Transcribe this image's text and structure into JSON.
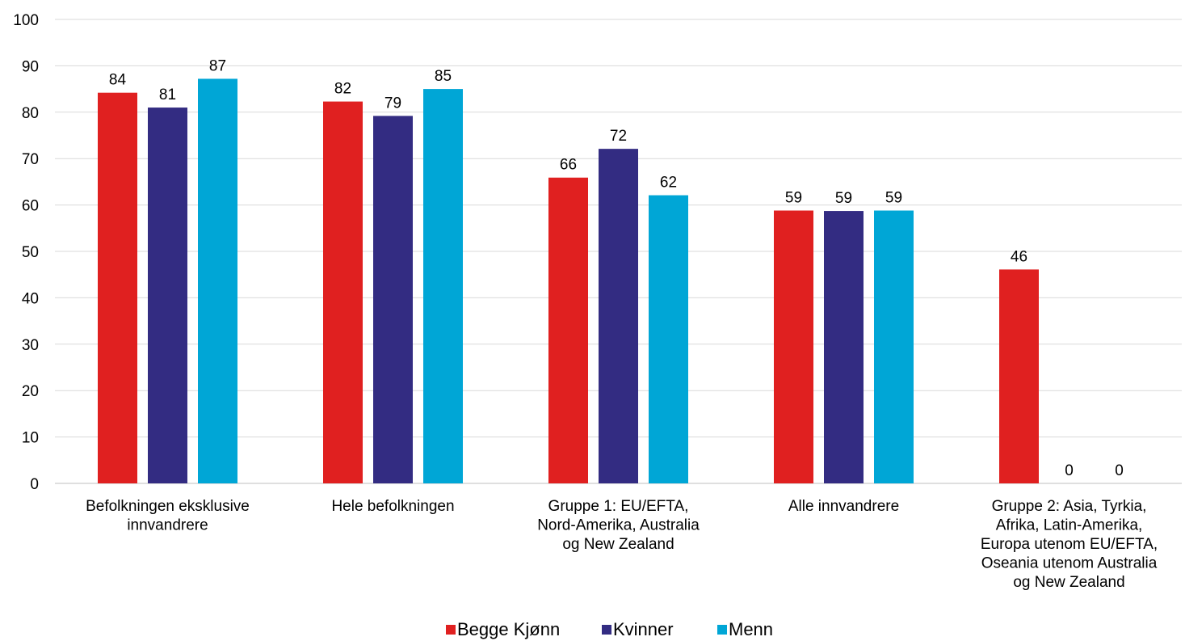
{
  "chart_data": {
    "type": "bar",
    "title": "",
    "xlabel": "",
    "ylabel": "",
    "ylim": [
      0,
      100
    ],
    "yticks": [
      0,
      10,
      20,
      30,
      40,
      50,
      60,
      70,
      80,
      90,
      100
    ],
    "grid": true,
    "legend_position": "bottom",
    "categories": [
      [
        "Befolkningen eksklusive",
        "innvandrere"
      ],
      [
        "Hele befolkningen"
      ],
      [
        "Gruppe 1: EU/EFTA,",
        "Nord-Amerika, Australia",
        "og New Zealand"
      ],
      [
        "Alle innvandrere"
      ],
      [
        "Gruppe 2: Asia, Tyrkia,",
        "Afrika, Latin-Amerika,",
        "Europa utenom EU/EFTA,",
        "Oseania utenom Australia",
        "og New Zealand"
      ]
    ],
    "series": [
      {
        "name": "Begge Kjønn",
        "color": "#e02020",
        "values": [
          84.2,
          82.3,
          65.9,
          58.8,
          46.1
        ],
        "labels": [
          "84",
          "82",
          "66",
          "59",
          "46"
        ]
      },
      {
        "name": "Kvinner",
        "color": "#332c82",
        "values": [
          81.0,
          79.2,
          72.1,
          58.7,
          0
        ],
        "labels": [
          "81",
          "79",
          "72",
          "59",
          "0"
        ]
      },
      {
        "name": "Menn",
        "color": "#00a6d6",
        "values": [
          87.2,
          85.0,
          62.1,
          58.8,
          0
        ],
        "labels": [
          "87",
          "85",
          "62",
          "59",
          "0"
        ]
      }
    ]
  }
}
